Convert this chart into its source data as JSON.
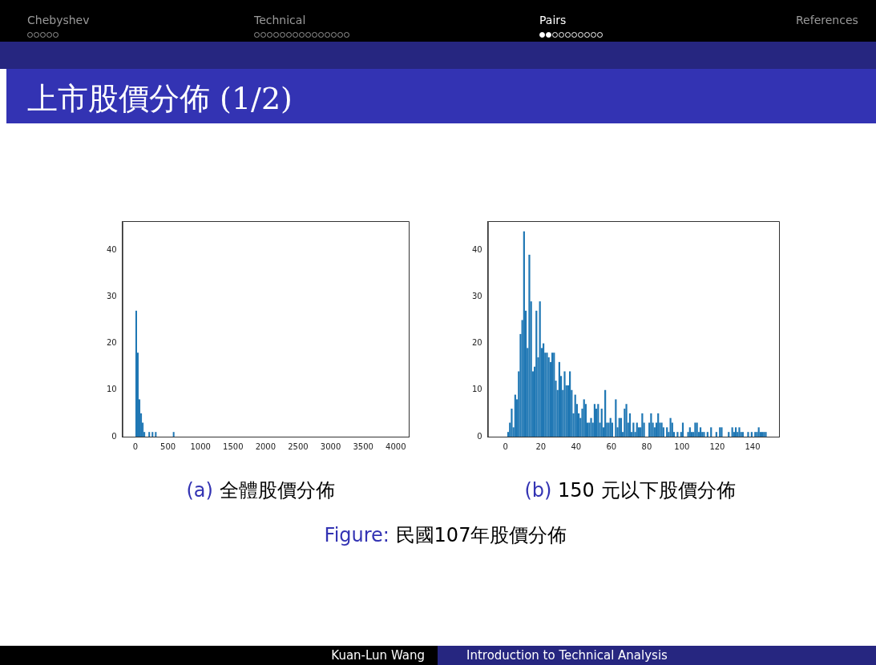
{
  "chart_data": [
    {
      "type": "histogram",
      "title": "上市股價分佈 (1/2)",
      "annotations": [
        "Chebyshev",
        "Technical",
        "Pairs",
        "References",
        "(a) 全體股價分佈",
        "Figure: 民國107年股價分佈",
        "Kuan-Lun Wang",
        "Introduction to Technical Analysis"
      ],
      "bins": [
        0,
        25,
        50,
        75,
        100,
        125,
        150,
        175,
        200,
        225,
        250,
        275,
        300,
        325,
        350,
        375,
        400,
        425,
        450,
        475,
        500,
        525,
        550,
        575,
        600
      ],
      "values": [
        27,
        18,
        8,
        5,
        3,
        1,
        0,
        0,
        1,
        0,
        1,
        0,
        1,
        0,
        0,
        0,
        0,
        0,
        0,
        0,
        0,
        0,
        0,
        1
      ],
      "color": "#1f77b4",
      "xlim": [
        -200,
        4200
      ],
      "xticks": [
        0,
        500,
        1000,
        1500,
        2000,
        2500,
        3000,
        3500,
        4000
      ],
      "ylim": [
        0,
        46.2
      ],
      "yticks": [
        0,
        10,
        20,
        30,
        40
      ],
      "grid": false,
      "legend": false
    },
    {
      "type": "histogram",
      "annotations": [
        "(b) 150 元以下股價分佈"
      ],
      "bins": [
        1,
        2,
        3,
        4,
        5,
        6,
        7,
        8,
        9,
        10,
        11,
        12,
        13,
        14,
        15,
        16,
        17,
        18,
        19,
        20,
        21,
        22,
        23,
        24,
        25,
        26,
        27,
        28,
        29,
        30,
        31,
        32,
        33,
        34,
        35,
        36,
        37,
        38,
        39,
        40,
        41,
        42,
        43,
        44,
        45,
        46,
        47,
        48,
        49,
        50,
        51,
        52,
        53,
        54,
        55,
        56,
        57,
        58,
        59,
        60,
        61,
        62,
        63,
        64,
        65,
        66,
        67,
        68,
        69,
        70,
        71,
        72,
        73,
        74,
        75,
        76,
        77,
        78,
        79,
        80,
        81,
        82,
        83,
        84,
        85,
        86,
        87,
        88,
        89,
        90,
        91,
        92,
        93,
        94,
        95,
        96,
        97,
        98,
        99,
        100,
        101,
        102,
        103,
        104,
        105,
        106,
        107,
        108,
        109,
        110,
        111,
        112,
        113,
        114,
        115,
        116,
        117,
        118,
        119,
        120,
        121,
        122,
        123,
        124,
        125,
        126,
        127,
        128,
        129,
        130,
        131,
        132,
        133,
        134,
        135,
        136,
        137,
        138,
        139,
        140,
        141,
        142,
        143,
        144,
        145,
        146,
        147,
        148
      ],
      "values": [
        1,
        3,
        6,
        2,
        9,
        8,
        14,
        22,
        25,
        44,
        27,
        19,
        39,
        29,
        14,
        15,
        27,
        17,
        29,
        19,
        20,
        18,
        18,
        17,
        16,
        18,
        18,
        12,
        10,
        16,
        13,
        10,
        14,
        11,
        11,
        14,
        10,
        5,
        9,
        7,
        5,
        4,
        6,
        8,
        7,
        3,
        3,
        4,
        3,
        7,
        6,
        7,
        3,
        6,
        2,
        10,
        3,
        3,
        4,
        3,
        0,
        8,
        2,
        4,
        4,
        1,
        6,
        7,
        3,
        5,
        1,
        3,
        1,
        3,
        2,
        2,
        5,
        3,
        0,
        0,
        3,
        5,
        3,
        2,
        3,
        5,
        3,
        3,
        2,
        0,
        2,
        1,
        4,
        3,
        1,
        0,
        1,
        0,
        1,
        3,
        0,
        0,
        1,
        2,
        1,
        1,
        3,
        3,
        1,
        2,
        1,
        1,
        0,
        1,
        0,
        2,
        0,
        0,
        1,
        0,
        2,
        2,
        0,
        0,
        0,
        1,
        0,
        2,
        1,
        2,
        1,
        2,
        1,
        1,
        0,
        0,
        1,
        0,
        1,
        0,
        1,
        1,
        2,
        1,
        1,
        1,
        1
      ],
      "color": "#1f77b4",
      "xlim": [
        -10,
        155
      ],
      "xticks": [
        0,
        20,
        40,
        60,
        80,
        100,
        120,
        140
      ],
      "ylim": [
        0,
        46.2
      ],
      "yticks": [
        0,
        10,
        20,
        30,
        40
      ],
      "grid": false,
      "legend": false
    }
  ]
}
